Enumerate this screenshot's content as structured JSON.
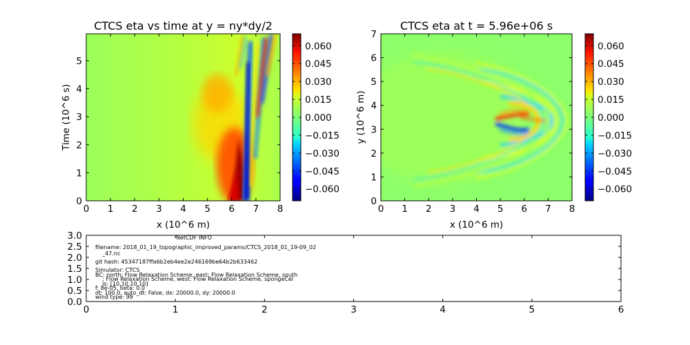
{
  "chart_data": [
    {
      "type": "heatmap",
      "title": "CTCS eta vs time at y = ny*dy/2",
      "xlabel": "x (10^6 m)",
      "ylabel": "Time (10^6 s)",
      "xlim": [
        0,
        8
      ],
      "ylim": [
        0,
        5.96
      ],
      "xticks": [
        "0",
        "1",
        "2",
        "3",
        "4",
        "5",
        "6",
        "7",
        "8"
      ],
      "yticks": [
        "0",
        "1",
        "2",
        "3",
        "4",
        "5"
      ],
      "colormap": "jet",
      "clim": [
        -0.07,
        0.07
      ],
      "colorbar_ticks": [
        "0.060",
        "0.045",
        "0.030",
        "0.015",
        "0.000",
        "−0.015",
        "−0.030",
        "−0.045",
        "−0.060"
      ],
      "features": [
        {
          "x": 6.4,
          "y": 0.5,
          "value": 0.07
        },
        {
          "x": 6.2,
          "y": 1.5,
          "value": 0.055
        },
        {
          "x": 5.2,
          "y": 3.5,
          "value": 0.03
        },
        {
          "x": 6.8,
          "y": 3.0,
          "value": -0.05
        },
        {
          "x": 7.3,
          "y": 4.5,
          "value": 0.045
        }
      ]
    },
    {
      "type": "heatmap",
      "title": "CTCS eta at t = 5.96e+06 s",
      "xlabel": "x (10^6 m)",
      "ylabel": "y (10^6 m)",
      "xlim": [
        0,
        8
      ],
      "ylim": [
        0,
        7
      ],
      "xticks": [
        "0",
        "1",
        "2",
        "3",
        "4",
        "5",
        "6",
        "7",
        "8"
      ],
      "yticks": [
        "0",
        "1",
        "2",
        "3",
        "4",
        "5",
        "6",
        "7"
      ],
      "colormap": "jet",
      "clim": [
        -0.07,
        0.07
      ],
      "colorbar_ticks": [
        "0.060",
        "0.045",
        "0.030",
        "0.015",
        "0.000",
        "−0.015",
        "−0.030",
        "−0.045",
        "−0.060"
      ],
      "features": [
        {
          "x": 7.0,
          "y": 3.5,
          "value": 0.04
        },
        {
          "x": 5.9,
          "y": 3.6,
          "value": 0.06
        },
        {
          "x": 5.9,
          "y": 3.3,
          "value": -0.045
        },
        {
          "x": 6.6,
          "y": 3.4,
          "value": -0.03
        }
      ]
    },
    {
      "type": "table",
      "title": "NetCDF INFO",
      "xlim": [
        0,
        6
      ],
      "ylim": [
        0,
        3
      ],
      "xticks": [
        "0",
        "1",
        "2",
        "3",
        "4",
        "5",
        "6"
      ],
      "yticks": [
        "0.0",
        "0.5",
        "1.0",
        "1.5",
        "2.0",
        "2.5",
        "3.0"
      ],
      "lines": [
        "filename: 2018_01_19_topographic_improved_params/CTCS_2018_01_19-09_02",
        "    _47.nc",
        "git hash: 45347187ffa6b2eb4ee2e246169be64b2b633462",
        "Simulator: CTCS",
        "BC: north: Flow Relaxation Scheme, east: Flow Relaxation Scheme, south",
        "    : Flow Relaxation Scheme, west: Flow Relaxation Scheme, spongeCel",
        "    ls: [10,10,10,10]",
        "f: 8e-05, beta: 0.0",
        "dt: 100.0, auto_dt: False, dx: 20000.0, dy: 20000.0",
        "wind type: 99"
      ]
    }
  ]
}
